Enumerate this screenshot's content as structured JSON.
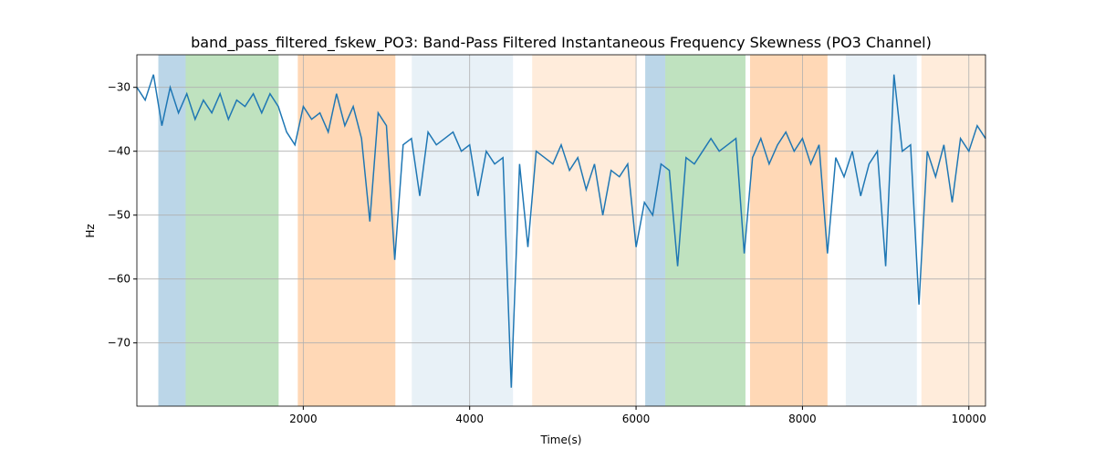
{
  "chart_data": {
    "type": "line",
    "title": "band_pass_filtered_fskew_PO3: Band-Pass Filtered Instantaneous Frequency Skewness (PO3 Channel)",
    "xlabel": "Time(s)",
    "ylabel": "Hz",
    "xlim": [
      0,
      10200
    ],
    "ylim": [
      -79.9,
      -24.9
    ],
    "xticks": [
      2000,
      4000,
      6000,
      8000,
      10000
    ],
    "yticks": [
      {
        "value": -70,
        "label": "−70"
      },
      {
        "value": -60,
        "label": "−60"
      },
      {
        "value": -50,
        "label": "−50"
      },
      {
        "value": -40,
        "label": "−40"
      },
      {
        "value": -30,
        "label": "−30"
      }
    ],
    "grid": true,
    "spans": [
      {
        "x0": 258,
        "x1": 586,
        "color": "#1f77b4",
        "alpha": 0.3
      },
      {
        "x0": 586,
        "x1": 1704,
        "color": "#2ca02c",
        "alpha": 0.3
      },
      {
        "x0": 1934,
        "x1": 3107,
        "color": "#ff7f0e",
        "alpha": 0.3
      },
      {
        "x0": 3304,
        "x1": 4521,
        "color": "#1f77b4",
        "alpha": 0.1
      },
      {
        "x0": 4751,
        "x1": 6000,
        "color": "#ff7f0e",
        "alpha": 0.15
      },
      {
        "x0": 6110,
        "x1": 6351,
        "color": "#1f77b4",
        "alpha": 0.3
      },
      {
        "x0": 6351,
        "x1": 7315,
        "color": "#2ca02c",
        "alpha": 0.3
      },
      {
        "x0": 7370,
        "x1": 8301,
        "color": "#ff7f0e",
        "alpha": 0.3
      },
      {
        "x0": 8521,
        "x1": 9375,
        "color": "#1f77b4",
        "alpha": 0.1
      },
      {
        "x0": 9430,
        "x1": 10200,
        "color": "#ff7f0e",
        "alpha": 0.15
      }
    ],
    "x": [
      0,
      100,
      200,
      300,
      400,
      500,
      600,
      700,
      800,
      900,
      1000,
      1100,
      1200,
      1300,
      1400,
      1500,
      1600,
      1700,
      1800,
      1900,
      2000,
      2100,
      2200,
      2300,
      2400,
      2500,
      2600,
      2700,
      2800,
      2900,
      3000,
      3100,
      3200,
      3300,
      3400,
      3500,
      3600,
      3700,
      3800,
      3900,
      4000,
      4100,
      4200,
      4300,
      4400,
      4500,
      4600,
      4700,
      4800,
      4900,
      5000,
      5100,
      5200,
      5300,
      5400,
      5500,
      5600,
      5700,
      5800,
      5900,
      6000,
      6100,
      6200,
      6300,
      6400,
      6500,
      6600,
      6700,
      6800,
      6900,
      7000,
      7100,
      7200,
      7300,
      7400,
      7500,
      7600,
      7700,
      7800,
      7900,
      8000,
      8100,
      8200,
      8300,
      8400,
      8500,
      8600,
      8700,
      8800,
      8900,
      9000,
      9100,
      9200,
      9300,
      9400,
      9500,
      9600,
      9700,
      9800,
      9900,
      10000,
      10100,
      10200
    ],
    "series": [
      {
        "color": "#1f77b4",
        "values": [
          -30,
          -32,
          -28,
          -36,
          -30,
          -34,
          -31,
          -35,
          -32,
          -34,
          -31,
          -35,
          -32,
          -33,
          -31,
          -34,
          -31,
          -33,
          -37,
          -39,
          -33,
          -35,
          -34,
          -37,
          -31,
          -36,
          -33,
          -38,
          -51,
          -34,
          -36,
          -57,
          -39,
          -38,
          -47,
          -37,
          -39,
          -38,
          -37,
          -40,
          -39,
          -47,
          -40,
          -42,
          -41,
          -77,
          -42,
          -55,
          -40,
          -41,
          -42,
          -39,
          -43,
          -41,
          -46,
          -42,
          -50,
          -43,
          -44,
          -42,
          -55,
          -48,
          -50,
          -42,
          -43,
          -58,
          -41,
          -42,
          -40,
          -38,
          -40,
          -39,
          -38,
          -56,
          -41,
          -38,
          -42,
          -39,
          -37,
          -40,
          -38,
          -42,
          -39,
          -56,
          -41,
          -44,
          -40,
          -47,
          -42,
          -40,
          -58,
          -28,
          -40,
          -39,
          -64,
          -40,
          -44,
          -39,
          -48,
          -38,
          -40,
          -36,
          -38
        ]
      }
    ]
  }
}
